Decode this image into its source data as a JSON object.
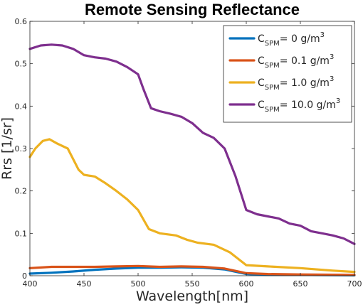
{
  "chart_data": {
    "type": "line",
    "title": "Remote Sensing Reflectance",
    "xlabel": "Wavelength[nm]",
    "ylabel": "Rrs [1/sr]",
    "xlim": [
      400,
      700
    ],
    "ylim": [
      0,
      0.6
    ],
    "xticks": [
      400,
      450,
      500,
      550,
      600,
      650,
      700
    ],
    "yticks": [
      0,
      0.1,
      0.2,
      0.3,
      0.4,
      0.5,
      0.6
    ],
    "ytick_labels": [
      "0",
      "0.1",
      "0.2",
      "0.3",
      "0.4",
      "0.5",
      "0.6"
    ],
    "grid": false,
    "legend_position": "top-right",
    "series": [
      {
        "legend_prefix": "C",
        "legend_sub": "SPM",
        "legend_value": "= 0 g/m",
        "legend_sup": "3",
        "color": "#0072BD",
        "points": [
          [
            400,
            0.005
          ],
          [
            420,
            0.007
          ],
          [
            440,
            0.01
          ],
          [
            460,
            0.014
          ],
          [
            480,
            0.017
          ],
          [
            500,
            0.019
          ],
          [
            520,
            0.019
          ],
          [
            540,
            0.02
          ],
          [
            560,
            0.019
          ],
          [
            580,
            0.015
          ],
          [
            600,
            0.004
          ],
          [
            620,
            0.002
          ],
          [
            650,
            0.002
          ],
          [
            700,
            0.001
          ]
        ]
      },
      {
        "legend_prefix": "C",
        "legend_sub": "SPM",
        "legend_value": "= 0.1 g/m",
        "legend_sup": "3",
        "color": "#D95319",
        "points": [
          [
            400,
            0.018
          ],
          [
            420,
            0.021
          ],
          [
            440,
            0.021
          ],
          [
            460,
            0.021
          ],
          [
            480,
            0.022
          ],
          [
            500,
            0.023
          ],
          [
            520,
            0.021
          ],
          [
            540,
            0.022
          ],
          [
            560,
            0.021
          ],
          [
            580,
            0.017
          ],
          [
            600,
            0.006
          ],
          [
            620,
            0.004
          ],
          [
            650,
            0.003
          ],
          [
            700,
            0.002
          ]
        ]
      },
      {
        "legend_prefix": "C",
        "legend_sub": "SPM",
        "legend_value": "= 1.0 g/m",
        "legend_sup": "3",
        "color": "#EDB120",
        "points": [
          [
            400,
            0.28
          ],
          [
            405,
            0.3
          ],
          [
            412,
            0.318
          ],
          [
            418,
            0.322
          ],
          [
            425,
            0.312
          ],
          [
            435,
            0.3
          ],
          [
            445,
            0.25
          ],
          [
            450,
            0.238
          ],
          [
            460,
            0.234
          ],
          [
            470,
            0.218
          ],
          [
            480,
            0.2
          ],
          [
            490,
            0.18
          ],
          [
            500,
            0.155
          ],
          [
            510,
            0.11
          ],
          [
            520,
            0.1
          ],
          [
            535,
            0.095
          ],
          [
            545,
            0.085
          ],
          [
            555,
            0.078
          ],
          [
            570,
            0.073
          ],
          [
            585,
            0.055
          ],
          [
            600,
            0.025
          ],
          [
            620,
            0.022
          ],
          [
            650,
            0.018
          ],
          [
            680,
            0.012
          ],
          [
            700,
            0.009
          ]
        ]
      },
      {
        "legend_prefix": "C",
        "legend_sub": "SPM",
        "legend_value": "= 10.0 g/m",
        "legend_sup": "3",
        "color": "#7E2F8E",
        "points": [
          [
            400,
            0.535
          ],
          [
            410,
            0.543
          ],
          [
            420,
            0.545
          ],
          [
            430,
            0.543
          ],
          [
            440,
            0.535
          ],
          [
            450,
            0.52
          ],
          [
            460,
            0.515
          ],
          [
            470,
            0.512
          ],
          [
            480,
            0.505
          ],
          [
            490,
            0.492
          ],
          [
            500,
            0.475
          ],
          [
            505,
            0.44
          ],
          [
            512,
            0.395
          ],
          [
            520,
            0.388
          ],
          [
            530,
            0.382
          ],
          [
            540,
            0.375
          ],
          [
            550,
            0.36
          ],
          [
            560,
            0.337
          ],
          [
            570,
            0.325
          ],
          [
            580,
            0.3
          ],
          [
            590,
            0.235
          ],
          [
            600,
            0.155
          ],
          [
            610,
            0.145
          ],
          [
            620,
            0.14
          ],
          [
            630,
            0.135
          ],
          [
            640,
            0.123
          ],
          [
            650,
            0.118
          ],
          [
            660,
            0.105
          ],
          [
            670,
            0.1
          ],
          [
            680,
            0.095
          ],
          [
            690,
            0.088
          ],
          [
            700,
            0.075
          ]
        ]
      }
    ]
  }
}
